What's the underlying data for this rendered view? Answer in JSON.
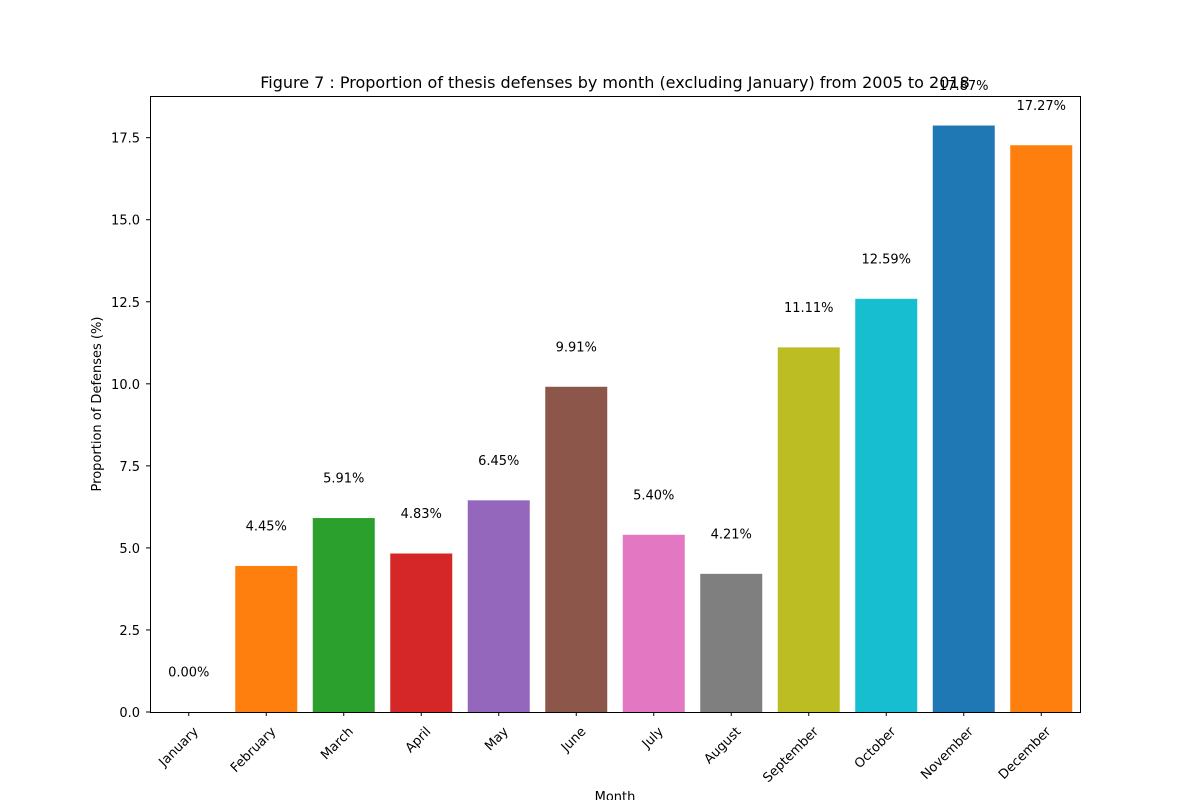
{
  "chart_data": {
    "type": "bar",
    "title": "Figure 7 : Proportion of thesis defenses by month (excluding January) from 2005 to 2018",
    "xlabel": "Month",
    "ylabel": "Proportion of Defenses (%)",
    "ylim": [
      0,
      18.77
    ],
    "yticks": [
      "0.0",
      "2.5",
      "5.0",
      "7.5",
      "10.0",
      "12.5",
      "15.0",
      "17.5"
    ],
    "ytick_values": [
      0,
      2.5,
      5.0,
      7.5,
      10.0,
      12.5,
      15.0,
      17.5
    ],
    "categories": [
      "January",
      "February",
      "March",
      "April",
      "May",
      "June",
      "July",
      "August",
      "September",
      "October",
      "November",
      "December"
    ],
    "values": [
      0.0,
      4.45,
      5.91,
      4.83,
      6.45,
      9.91,
      5.4,
      4.21,
      11.11,
      12.59,
      17.87,
      17.27
    ],
    "data_labels": [
      "0.00%",
      "4.45%",
      "5.91%",
      "4.83%",
      "6.45%",
      "9.91%",
      "5.40%",
      "4.21%",
      "11.11%",
      "12.59%",
      "17.87%",
      "17.27%"
    ],
    "colors": [
      "#1f77b4",
      "#ff7f0e",
      "#2ca02c",
      "#d62728",
      "#9467bd",
      "#8c564b",
      "#e377c2",
      "#7f7f7f",
      "#bcbd22",
      "#17becf",
      "#1f77b4",
      "#ff7f0e"
    ],
    "grid": false,
    "legend": "none"
  }
}
